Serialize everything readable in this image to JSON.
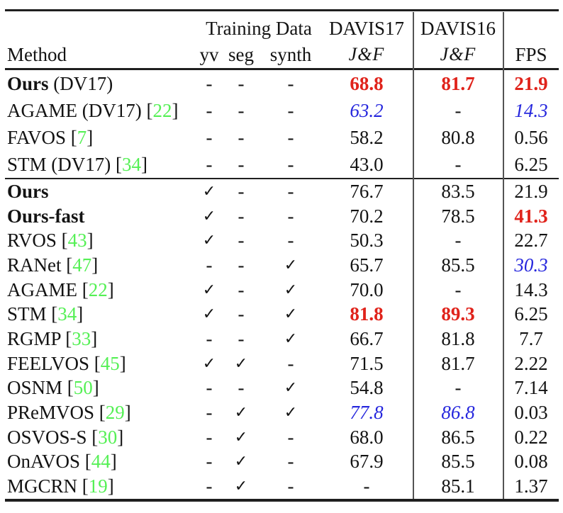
{
  "header": {
    "method": "Method",
    "training_data": "Training Data",
    "sub": [
      "yv",
      "seg",
      "synth"
    ],
    "davis17": "DAVIS17",
    "davis16": "DAVIS16",
    "jf": "J&F",
    "fps": "FPS"
  },
  "colors": {
    "best": "#e0231b",
    "second_best": "#2526dd",
    "citation": "#55f055"
  },
  "rows": [
    {
      "b": "Ours",
      "t": " (DV17)",
      "c": "",
      "e": "",
      "yv": "-",
      "yv_c": "",
      "seg": "-",
      "seg_c": "",
      "syn": "-",
      "syn_c": "",
      "d17": "68.8",
      "d17c": "best",
      "d16": "81.7",
      "d16c": "best",
      "fps": "21.9",
      "fpsc": "best"
    },
    {
      "b": "",
      "t": "AGAME (DV17) [",
      "c": "22",
      "e": "]",
      "yv": "-",
      "yv_c": "",
      "seg": "-",
      "seg_c": "",
      "syn": "-",
      "syn_c": "",
      "d17": "63.2",
      "d17c": "second",
      "d16": "-",
      "d16c": "",
      "fps": "14.3",
      "fpsc": "second"
    },
    {
      "b": "",
      "t": "FAVOS [",
      "c": "7",
      "e": "]",
      "yv": "-",
      "yv_c": "",
      "seg": "-",
      "seg_c": "",
      "syn": "-",
      "syn_c": "",
      "d17": "58.2",
      "d17c": "",
      "d16": "80.8",
      "d16c": "",
      "fps": "0.56",
      "fpsc": ""
    },
    {
      "b": "",
      "t": "STM (DV17) [",
      "c": "34",
      "e": "]",
      "yv": "-",
      "yv_c": "",
      "seg": "-",
      "seg_c": "",
      "syn": "-",
      "syn_c": "",
      "d17": "43.0",
      "d17c": "",
      "d16": "-",
      "d16c": "",
      "fps": "6.25",
      "fpsc": ""
    },
    {
      "b": "Ours",
      "t": "",
      "c": "",
      "e": "",
      "yv": "✓",
      "yv_c": "ck",
      "seg": "-",
      "seg_c": "",
      "syn": "-",
      "syn_c": "",
      "d17": "76.7",
      "d17c": "",
      "d16": "83.5",
      "d16c": "",
      "fps": "21.9",
      "fpsc": ""
    },
    {
      "b": "Ours-fast",
      "t": "",
      "c": "",
      "e": "",
      "yv": "✓",
      "yv_c": "ck",
      "seg": "-",
      "seg_c": "",
      "syn": "-",
      "syn_c": "",
      "d17": "70.2",
      "d17c": "",
      "d16": "78.5",
      "d16c": "",
      "fps": "41.3",
      "fpsc": "best"
    },
    {
      "b": "",
      "t": "RVOS [",
      "c": "43",
      "e": "]",
      "yv": "✓",
      "yv_c": "ck",
      "seg": "-",
      "seg_c": "",
      "syn": "-",
      "syn_c": "",
      "d17": "50.3",
      "d17c": "",
      "d16": "-",
      "d16c": "",
      "fps": "22.7",
      "fpsc": ""
    },
    {
      "b": "",
      "t": "RANet [",
      "c": "47",
      "e": "]",
      "yv": "-",
      "yv_c": "",
      "seg": "-",
      "seg_c": "",
      "syn": "✓",
      "syn_c": "ck",
      "d17": "65.7",
      "d17c": "",
      "d16": "85.5",
      "d16c": "",
      "fps": "30.3",
      "fpsc": "second"
    },
    {
      "b": "",
      "t": "AGAME [",
      "c": "22",
      "e": "]",
      "yv": "✓",
      "yv_c": "ck",
      "seg": "-",
      "seg_c": "",
      "syn": "✓",
      "syn_c": "ck",
      "d17": "70.0",
      "d17c": "",
      "d16": "-",
      "d16c": "",
      "fps": "14.3",
      "fpsc": ""
    },
    {
      "b": "",
      "t": "STM [",
      "c": "34",
      "e": "]",
      "yv": "✓",
      "yv_c": "ck",
      "seg": "-",
      "seg_c": "",
      "syn": "✓",
      "syn_c": "ck",
      "d17": "81.8",
      "d17c": "best",
      "d16": "89.3",
      "d16c": "best",
      "fps": "6.25",
      "fpsc": ""
    },
    {
      "b": "",
      "t": "RGMP [",
      "c": "33",
      "e": "]",
      "yv": "-",
      "yv_c": "",
      "seg": "-",
      "seg_c": "",
      "syn": "✓",
      "syn_c": "ck",
      "d17": "66.7",
      "d17c": "",
      "d16": "81.8",
      "d16c": "",
      "fps": "7.7",
      "fpsc": ""
    },
    {
      "b": "",
      "t": "FEELVOS [",
      "c": "45",
      "e": "]",
      "yv": "✓",
      "yv_c": "ck",
      "seg": "✓",
      "seg_c": "ck",
      "syn": "-",
      "syn_c": "",
      "d17": "71.5",
      "d17c": "",
      "d16": "81.7",
      "d16c": "",
      "fps": "2.22",
      "fpsc": ""
    },
    {
      "b": "",
      "t": "OSNM [",
      "c": "50",
      "e": "]",
      "yv": "-",
      "yv_c": "",
      "seg": "-",
      "seg_c": "",
      "syn": "✓",
      "syn_c": "ck",
      "d17": "54.8",
      "d17c": "",
      "d16": "-",
      "d16c": "",
      "fps": "7.14",
      "fpsc": ""
    },
    {
      "b": "",
      "t": "PReMVOS [",
      "c": "29",
      "e": "]",
      "yv": "-",
      "yv_c": "",
      "seg": "✓",
      "seg_c": "ck",
      "syn": "✓",
      "syn_c": "ck",
      "d17": "77.8",
      "d17c": "second",
      "d16": "86.8",
      "d16c": "second",
      "fps": "0.03",
      "fpsc": ""
    },
    {
      "b": "",
      "t": "OSVOS-S [",
      "c": "30",
      "e": "]",
      "yv": "-",
      "yv_c": "",
      "seg": "✓",
      "seg_c": "ck",
      "syn": "-",
      "syn_c": "",
      "d17": "68.0",
      "d17c": "",
      "d16": "86.5",
      "d16c": "",
      "fps": "0.22",
      "fpsc": ""
    },
    {
      "b": "",
      "t": "OnAVOS [",
      "c": "44",
      "e": "]",
      "yv": "-",
      "yv_c": "",
      "seg": "✓",
      "seg_c": "ck",
      "syn": "-",
      "syn_c": "",
      "d17": "67.9",
      "d17c": "",
      "d16": "85.5",
      "d16c": "",
      "fps": "0.08",
      "fpsc": ""
    },
    {
      "b": "",
      "t": "MGCRN [",
      "c": "19",
      "e": "]",
      "yv": "-",
      "yv_c": "",
      "seg": "✓",
      "seg_c": "ck",
      "syn": "-",
      "syn_c": "",
      "d17": "-",
      "d17c": "",
      "d16": "85.1",
      "d16c": "",
      "fps": "1.37",
      "fpsc": ""
    }
  ]
}
